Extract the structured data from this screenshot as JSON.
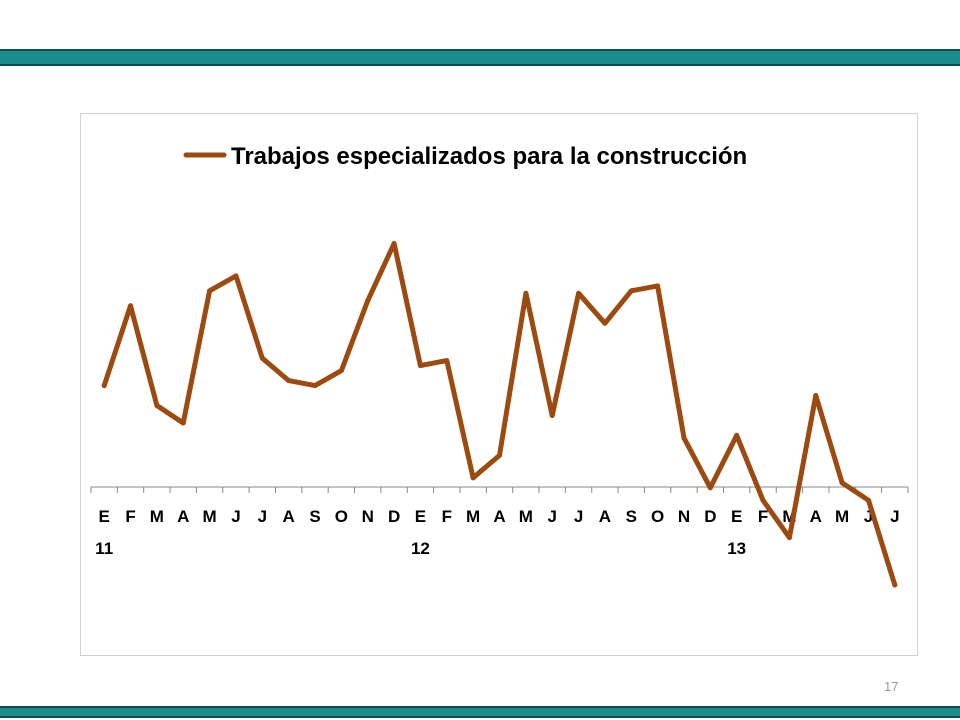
{
  "page": {
    "number": "17"
  },
  "colors": {
    "frame_bars": "#1a8c8c",
    "series": "#9c4a0f"
  },
  "chart_data": {
    "type": "line",
    "title": "",
    "xlabel": "",
    "ylabel": "",
    "grid": false,
    "legend": "top",
    "categories": [
      "E",
      "F",
      "M",
      "A",
      "M",
      "J",
      "J",
      "A",
      "S",
      "O",
      "N",
      "D",
      "E",
      "F",
      "M",
      "A",
      "M",
      "J",
      "J",
      "A",
      "S",
      "O",
      "N",
      "D",
      "E",
      "F",
      "M",
      "A",
      "M",
      "J",
      "J"
    ],
    "year_labels": [
      {
        "index": 0,
        "label": "11"
      },
      {
        "index": 12,
        "label": "12"
      },
      {
        "index": 24,
        "label": "13"
      }
    ],
    "ylim": [
      -4.2,
      10.0
    ],
    "series": [
      {
        "name": "Trabajos especializados para la construcción",
        "color": "#9c4a0f",
        "values": [
          4.0,
          7.2,
          3.2,
          2.5,
          7.8,
          8.4,
          5.1,
          4.2,
          4.0,
          4.6,
          7.4,
          9.7,
          4.8,
          5.0,
          0.3,
          1.2,
          7.7,
          2.8,
          7.7,
          6.5,
          7.8,
          8.0,
          1.9,
          -0.1,
          2.0,
          -0.6,
          -2.1,
          3.6,
          0.1,
          -0.6,
          -4.0
        ]
      }
    ]
  }
}
